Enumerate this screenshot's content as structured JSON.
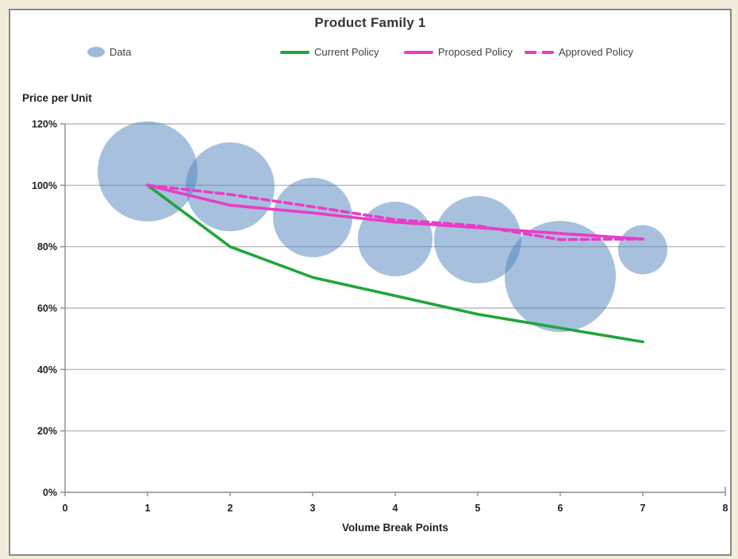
{
  "page": {
    "background": "#F2EDDB",
    "panel_border_color": "#8A8A82",
    "panel_background": "#FFFFFF"
  },
  "chart_data": {
    "type": "bubble",
    "title": "Product Family 1",
    "x_axis": {
      "label": "Volume Break Points",
      "min": 0,
      "max": 8,
      "ticks": [
        0,
        1,
        2,
        3,
        4,
        5,
        6,
        7,
        8
      ]
    },
    "y_axis": {
      "label": "Price per Unit",
      "min_pct": 0,
      "max_pct": 120,
      "ticks_pct": [
        0,
        20,
        40,
        60,
        80,
        100,
        120
      ],
      "tick_format": "percent"
    },
    "grid": true,
    "legend_position": "top",
    "bubble_series": {
      "name": "Data",
      "color": "#4F81BD",
      "opacity": 0.5,
      "points": [
        {
          "x": 1,
          "y_pct": 104.5,
          "radius_px": 63
        },
        {
          "x": 2,
          "y_pct": 99.5,
          "radius_px": 56
        },
        {
          "x": 3,
          "y_pct": 89.5,
          "radius_px": 50
        },
        {
          "x": 4,
          "y_pct": 82.5,
          "radius_px": 47
        },
        {
          "x": 5,
          "y_pct": 82.3,
          "radius_px": 55
        },
        {
          "x": 6,
          "y_pct": 70.3,
          "radius_px": 70
        },
        {
          "x": 7,
          "y_pct": 79.0,
          "radius_px": 31
        }
      ]
    },
    "line_series": [
      {
        "name": "Current Policy",
        "color": "#22A43C",
        "dash": "solid",
        "x": [
          1,
          2,
          3,
          4,
          5,
          6,
          7
        ],
        "y_pct": [
          100,
          80,
          70,
          64,
          58,
          53.5,
          49
        ]
      },
      {
        "name": "Proposed Policy",
        "color": "#E93CC8",
        "dash": "solid",
        "x": [
          1,
          2,
          3,
          4,
          5,
          6,
          7
        ],
        "y_pct": [
          100,
          93.5,
          91,
          88,
          86.2,
          84.3,
          82.5
        ]
      },
      {
        "name": "Approved Policy",
        "color": "#E93CC8",
        "dash": "dashed",
        "x": [
          1,
          2,
          3,
          4,
          5,
          6,
          7
        ],
        "y_pct": [
          100,
          97,
          93,
          88.8,
          86.8,
          82.3,
          82.5
        ]
      }
    ],
    "style": {
      "gridline_color": "#ABABAB",
      "axis_color": "#8C8C8C",
      "tick_label_color": "#1F1F1F",
      "line_width": 3.6,
      "dash_pattern": "9 5.5"
    }
  },
  "legend": {
    "items": [
      {
        "label": "Data",
        "marker": "bubble",
        "color": "#4F81BD"
      },
      {
        "label": "Current Policy",
        "marker": "line",
        "color": "#22A43C"
      },
      {
        "label": "Proposed Policy",
        "marker": "line",
        "color": "#E93CC8"
      },
      {
        "label": "Approved Policy",
        "marker": "dashed-line",
        "color": "#E93CC8"
      }
    ]
  }
}
